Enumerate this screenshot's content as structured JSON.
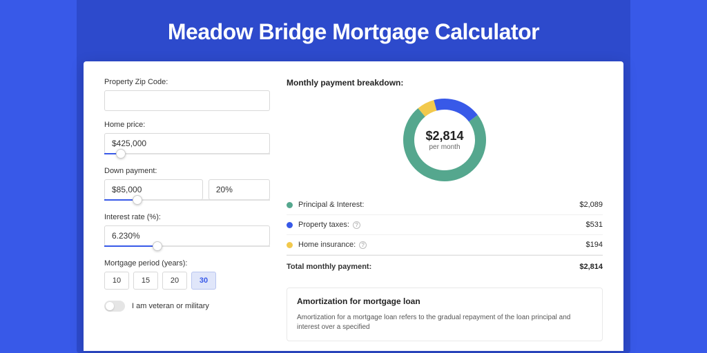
{
  "page": {
    "title": "Meadow Bridge Mortgage Calculator",
    "background_color": "#3859e8",
    "shadow_color": "#2d4acc"
  },
  "form": {
    "zip": {
      "label": "Property Zip Code:",
      "value": ""
    },
    "home_price": {
      "label": "Home price:",
      "value": "$425,000",
      "slider_pct": 10
    },
    "down_payment": {
      "label": "Down payment:",
      "amount": "$85,000",
      "percent": "20%",
      "slider_pct": 20
    },
    "interest": {
      "label": "Interest rate (%):",
      "value": "6.230%",
      "slider_pct": 32
    },
    "period": {
      "label": "Mortgage period (years):",
      "options": [
        "10",
        "15",
        "20",
        "30"
      ],
      "selected": "30"
    },
    "veteran": {
      "label": "I am veteran or military",
      "checked": false
    }
  },
  "breakdown": {
    "title": "Monthly payment breakdown:",
    "donut": {
      "type": "donut",
      "center_amount": "$2,814",
      "center_label": "per month",
      "radius": 60,
      "thickness": 16,
      "slices": [
        {
          "id": "principal_interest",
          "value": 2089,
          "color": "#55a78e",
          "pct": 74.2
        },
        {
          "id": "property_taxes",
          "value": 531,
          "color": "#3859e8",
          "pct": 18.9
        },
        {
          "id": "home_insurance",
          "value": 194,
          "color": "#f2c94c",
          "pct": 6.9
        }
      ],
      "background_color": "#ffffff"
    },
    "legend": [
      {
        "name": "Principal & Interest:",
        "value": "$2,089",
        "color": "#55a78e",
        "info": false
      },
      {
        "name": "Property taxes:",
        "value": "$531",
        "color": "#3859e8",
        "info": true
      },
      {
        "name": "Home insurance:",
        "value": "$194",
        "color": "#f2c94c",
        "info": true
      }
    ],
    "total": {
      "name": "Total monthly payment:",
      "value": "$2,814"
    }
  },
  "amortization": {
    "title": "Amortization for mortgage loan",
    "text": "Amortization for a mortgage loan refers to the gradual repayment of the loan principal and interest over a specified"
  }
}
